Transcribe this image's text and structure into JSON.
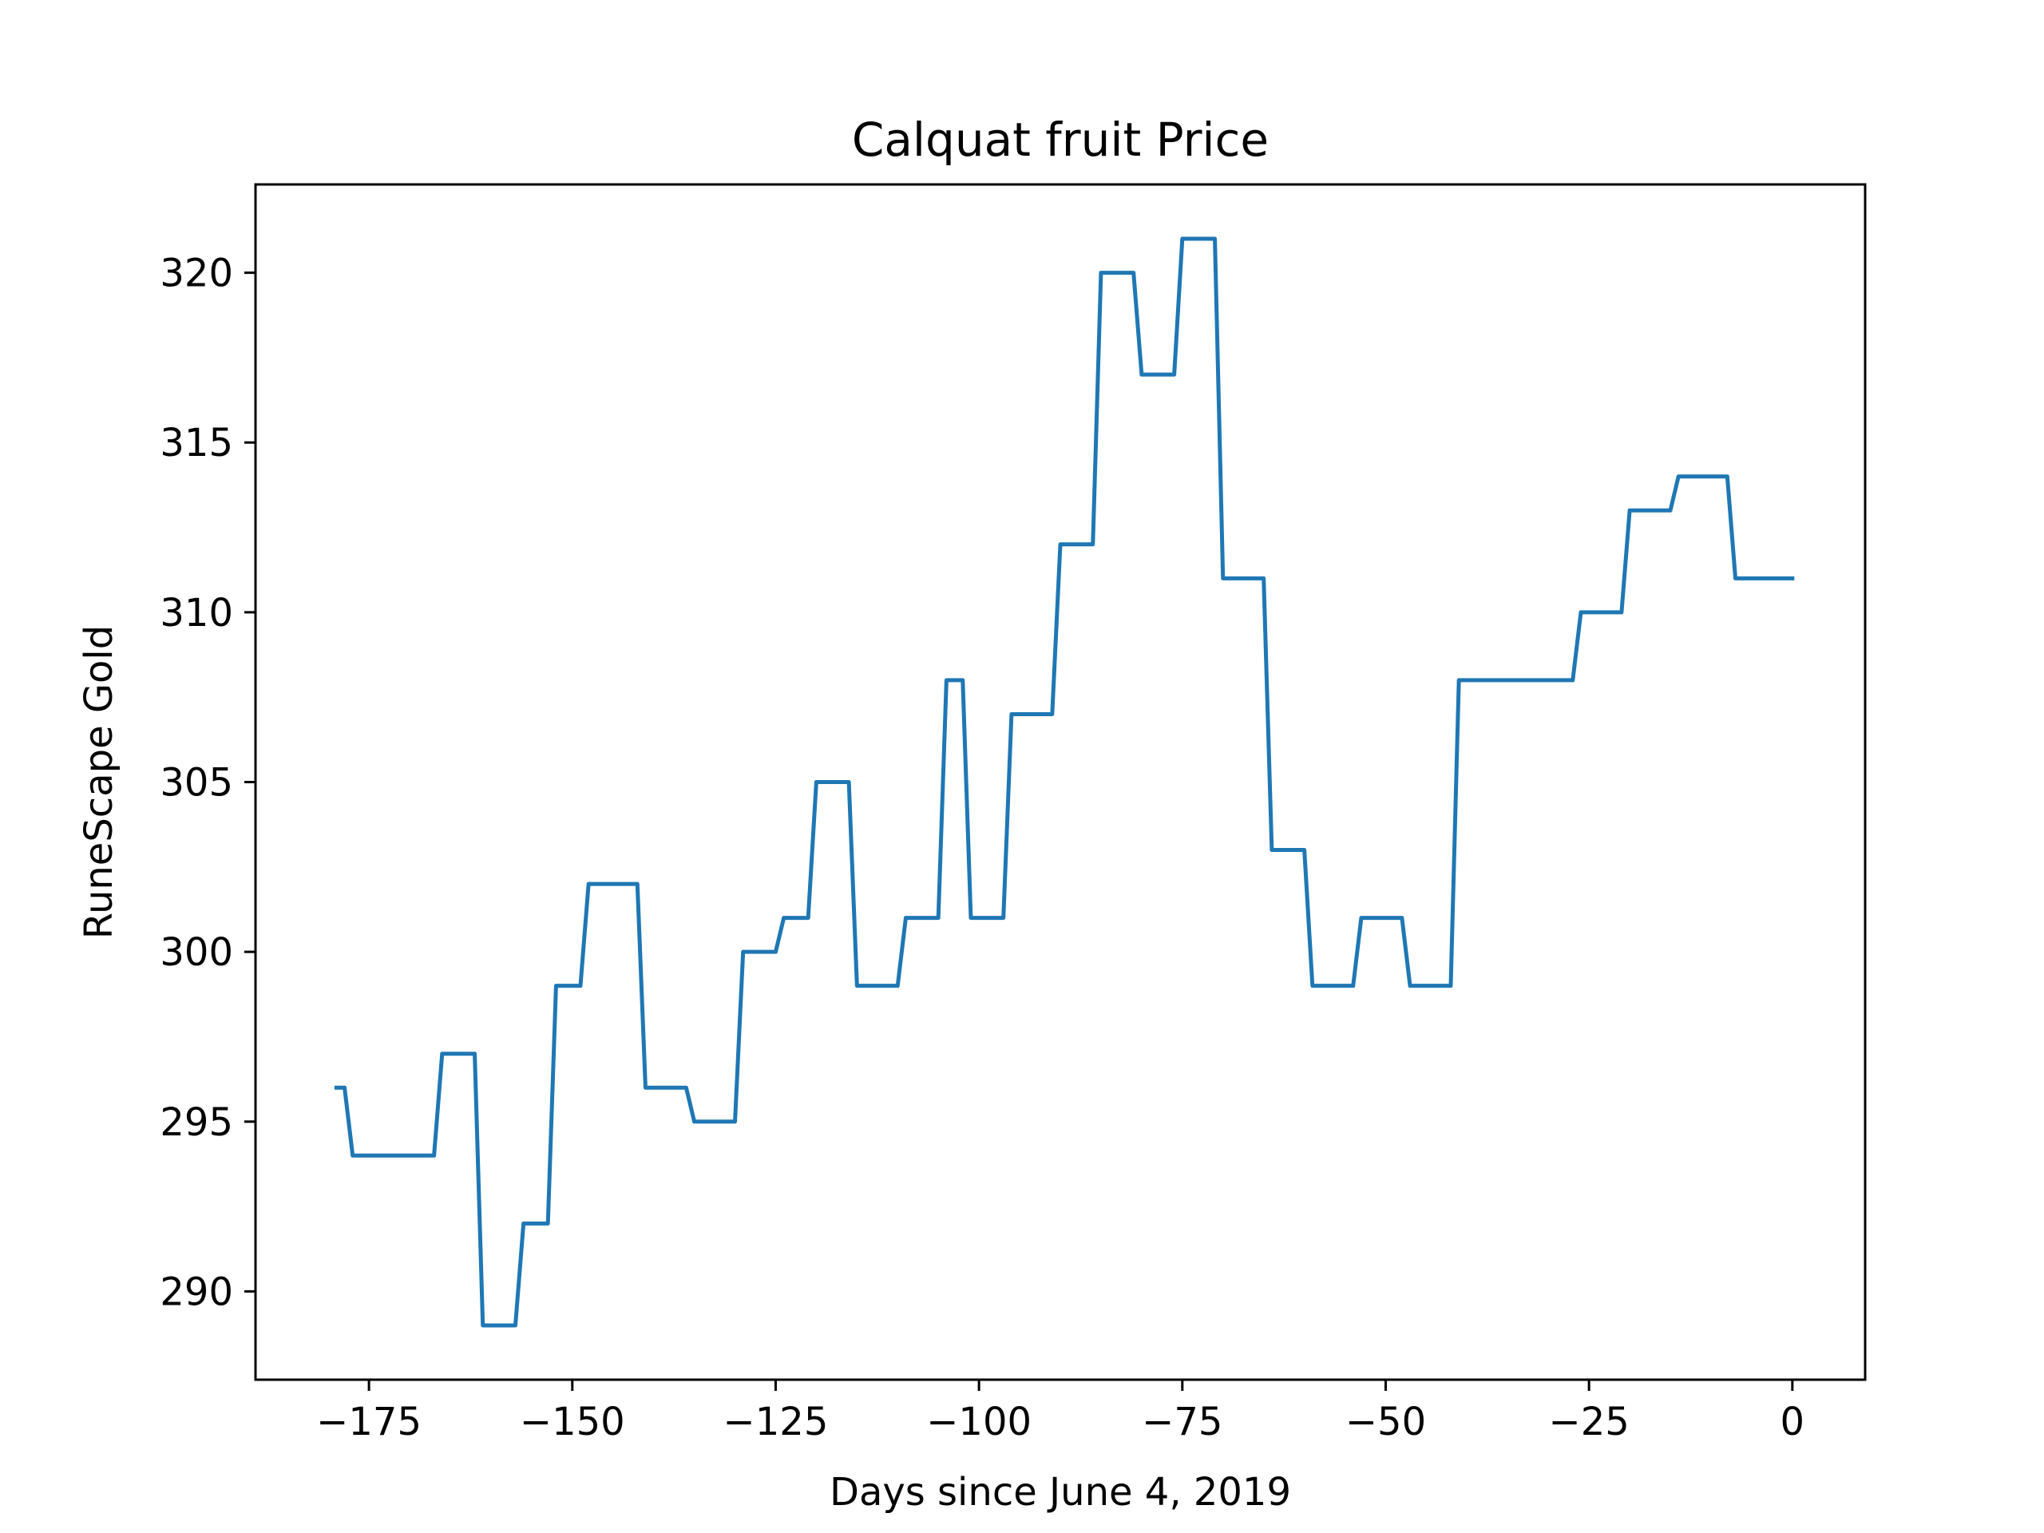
{
  "chart_data": {
    "type": "line",
    "title": "Calquat fruit Price",
    "xlabel": "Days since June 4, 2019",
    "ylabel": "RuneScape Gold",
    "xlim": [
      -188.95,
      8.95
    ],
    "ylim": [
      287.4,
      322.6
    ],
    "xticks": [
      -175,
      -150,
      -125,
      -100,
      -75,
      -50,
      -25,
      0
    ],
    "xtick_labels": [
      "−175",
      "−150",
      "−125",
      "−100",
      "−75",
      "−50",
      "−25",
      "0"
    ],
    "yticks": [
      290,
      295,
      300,
      305,
      310,
      315,
      320
    ],
    "ytick_labels": [
      "290",
      "295",
      "300",
      "305",
      "310",
      "315",
      "320"
    ],
    "grid": false,
    "line_color": "#1f77b4",
    "series": [
      {
        "x": [
          -179,
          -178,
          -177,
          -176,
          -175,
          -174,
          -173,
          -172,
          -171,
          -170,
          -169,
          -168,
          -167,
          -166,
          -165,
          -164,
          -163,
          -162,
          -161,
          -160,
          -159,
          -158,
          -157,
          -156,
          -155,
          -154,
          -153,
          -152,
          -151,
          -150,
          -149,
          -148,
          -147,
          -146,
          -145,
          -144,
          -143,
          -142,
          -141,
          -140,
          -139,
          -138,
          -137,
          -136,
          -135,
          -134,
          -133,
          -132,
          -131,
          -130,
          -129,
          -128,
          -127,
          -126,
          -125,
          -124,
          -123,
          -122,
          -121,
          -120,
          -119,
          -118,
          -117,
          -116,
          -115,
          -114,
          -113,
          -112,
          -111,
          -110,
          -109,
          -108,
          -107,
          -106,
          -105,
          -104,
          -103,
          -102,
          -101,
          -100,
          -99,
          -98,
          -97,
          -96,
          -95,
          -94,
          -93,
          -92,
          -91,
          -90,
          -89,
          -88,
          -87,
          -86,
          -85,
          -84,
          -83,
          -82,
          -81,
          -80,
          -79,
          -78,
          -77,
          -76,
          -75,
          -74,
          -73,
          -72,
          -71,
          -70,
          -69,
          -68,
          -67,
          -66,
          -65,
          -64,
          -63,
          -62,
          -61,
          -60,
          -59,
          -58,
          -57,
          -56,
          -55,
          -54,
          -53,
          -52,
          -51,
          -50,
          -49,
          -48,
          -47,
          -46,
          -45,
          -44,
          -43,
          -42,
          -41,
          -40,
          -39,
          -38,
          -37,
          -36,
          -35,
          -34,
          -33,
          -32,
          -31,
          -30,
          -29,
          -28,
          -27,
          -26,
          -25,
          -24,
          -23,
          -22,
          -21,
          -20,
          -19,
          -18,
          -17,
          -16,
          -15,
          -14,
          -13,
          -12,
          -11,
          -10,
          -9,
          -8,
          -7,
          -6,
          -5,
          -4,
          -3,
          -2,
          -1,
          0
        ],
        "y": [
          296,
          296,
          294,
          294,
          294,
          294,
          294,
          294,
          294,
          294,
          294,
          294,
          294,
          297,
          297,
          297,
          297,
          297,
          289,
          289,
          289,
          289,
          289,
          292,
          292,
          292,
          292,
          299,
          299,
          299,
          299,
          302,
          302,
          302,
          302,
          302,
          302,
          302,
          296,
          296,
          296,
          296,
          296,
          296,
          295,
          295,
          295,
          295,
          295,
          295,
          300,
          300,
          300,
          300,
          300,
          301,
          301,
          301,
          301,
          305,
          305,
          305,
          305,
          305,
          299,
          299,
          299,
          299,
          299,
          299,
          301,
          301,
          301,
          301,
          301,
          308,
          308,
          308,
          301,
          301,
          301,
          301,
          301,
          307,
          307,
          307,
          307,
          307,
          307,
          312,
          312,
          312,
          312,
          312,
          320,
          320,
          320,
          320,
          320,
          317,
          317,
          317,
          317,
          317,
          321,
          321,
          321,
          321,
          321,
          311,
          311,
          311,
          311,
          311,
          311,
          303,
          303,
          303,
          303,
          303,
          299,
          299,
          299,
          299,
          299,
          299,
          301,
          301,
          301,
          301,
          301,
          301,
          299,
          299,
          299,
          299,
          299,
          299,
          308,
          308,
          308,
          308,
          308,
          308,
          308,
          308,
          308,
          308,
          308,
          308,
          308,
          308,
          308,
          310,
          310,
          310,
          310,
          310,
          310,
          313,
          313,
          313,
          313,
          313,
          313,
          314,
          314,
          314,
          314,
          314,
          314,
          314,
          311,
          311,
          311,
          311,
          311,
          311,
          311,
          311
        ]
      }
    ]
  }
}
